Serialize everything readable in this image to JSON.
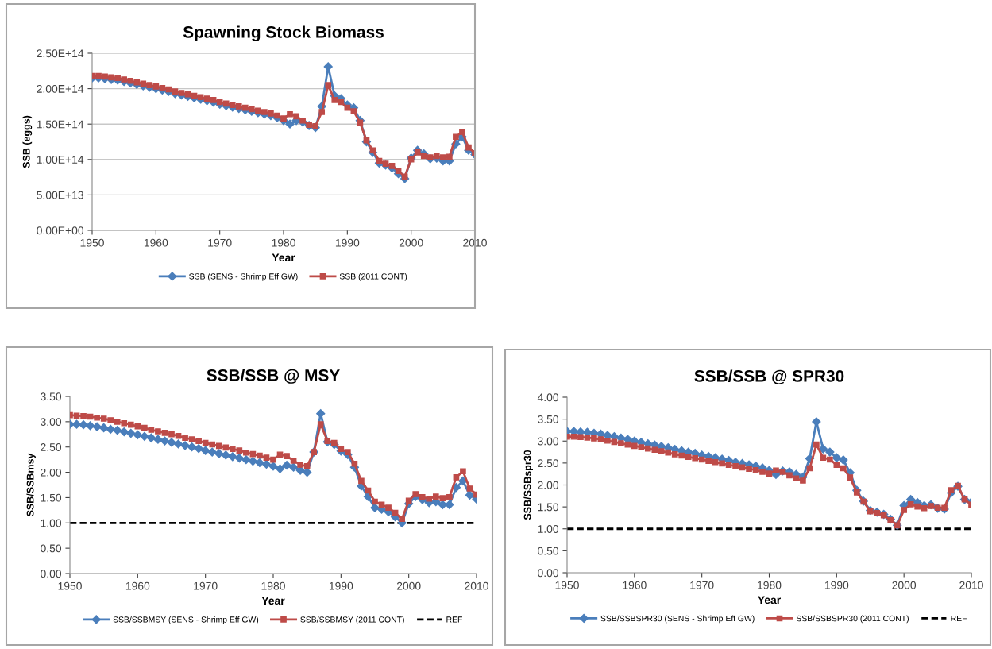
{
  "chart_data": [
    {
      "type": "line",
      "title": "Spawning Stock Biomass",
      "xlabel": "Year",
      "ylabel": "SSB (eggs)",
      "x": [
        1950,
        1951,
        1952,
        1953,
        1954,
        1955,
        1956,
        1957,
        1958,
        1959,
        1960,
        1961,
        1962,
        1963,
        1964,
        1965,
        1966,
        1967,
        1968,
        1969,
        1970,
        1971,
        1972,
        1973,
        1974,
        1975,
        1976,
        1977,
        1978,
        1979,
        1980,
        1981,
        1982,
        1983,
        1984,
        1985,
        1986,
        1987,
        1988,
        1989,
        1990,
        1991,
        1992,
        1993,
        1994,
        1995,
        1996,
        1997,
        1998,
        1999,
        2000,
        2001,
        2002,
        2003,
        2004,
        2005,
        2006,
        2007,
        2008,
        2009,
        2010
      ],
      "series": [
        {
          "name": "SSB (SENS - Shrimp Eff GW)",
          "color": "#4a7ebb",
          "marker": "diamond",
          "values": [
            215000000000000.0,
            215000000000000.0,
            214000000000000.0,
            213000000000000.0,
            212000000000000.0,
            210000000000000.0,
            208000000000000.0,
            206000000000000.0,
            204000000000000.0,
            202000000000000.0,
            200000000000000.0,
            198000000000000.0,
            196000000000000.0,
            193000000000000.0,
            191000000000000.0,
            189000000000000.0,
            187000000000000.0,
            185000000000000.0,
            183000000000000.0,
            181000000000000.0,
            178000000000000.0,
            176000000000000.0,
            174000000000000.0,
            172000000000000.0,
            170000000000000.0,
            168000000000000.0,
            166000000000000.0,
            164000000000000.0,
            162000000000000.0,
            159000000000000.0,
            155000000000000.0,
            150000000000000.0,
            155000000000000.0,
            153000000000000.0,
            148000000000000.0,
            145000000000000.0,
            175000000000000.0,
            231000000000000.0,
            190000000000000.0,
            186000000000000.0,
            177000000000000.0,
            173000000000000.0,
            155000000000000.0,
            125000000000000.0,
            110000000000000.0,
            95000000000000.0,
            92000000000000.0,
            88000000000000.0,
            80000000000000.0,
            73000000000000.0,
            102000000000000.0,
            113000000000000.0,
            108000000000000.0,
            101000000000000.0,
            102000000000000.0,
            98000000000000.0,
            98000000000000.0,
            122000000000000.0,
            132000000000000.0,
            113000000000000.0,
            107000000000000.0
          ]
        },
        {
          "name": "SSB (2011 CONT)",
          "color": "#be4b48",
          "marker": "square",
          "values": [
            218000000000000.0,
            218000000000000.0,
            217000000000000.0,
            216000000000000.0,
            215000000000000.0,
            213000000000000.0,
            211000000000000.0,
            209000000000000.0,
            207000000000000.0,
            205000000000000.0,
            203000000000000.0,
            201000000000000.0,
            199000000000000.0,
            196000000000000.0,
            194000000000000.0,
            192000000000000.0,
            190000000000000.0,
            188000000000000.0,
            186000000000000.0,
            184000000000000.0,
            181000000000000.0,
            179000000000000.0,
            177000000000000.0,
            175000000000000.0,
            173000000000000.0,
            171000000000000.0,
            169000000000000.0,
            167000000000000.0,
            165000000000000.0,
            162000000000000.0,
            158000000000000.0,
            164000000000000.0,
            161000000000000.0,
            155000000000000.0,
            149000000000000.0,
            147000000000000.0,
            167000000000000.0,
            205000000000000.0,
            184000000000000.0,
            181000000000000.0,
            173000000000000.0,
            168000000000000.0,
            152000000000000.0,
            127000000000000.0,
            113000000000000.0,
            98000000000000.0,
            94000000000000.0,
            91000000000000.0,
            84000000000000.0,
            76000000000000.0,
            100000000000000.0,
            110000000000000.0,
            105000000000000.0,
            103000000000000.0,
            105000000000000.0,
            103000000000000.0,
            104000000000000.0,
            132000000000000.0,
            139000000000000.0,
            117000000000000.0,
            109000000000000.0
          ]
        }
      ],
      "xlim": [
        1950,
        2010
      ],
      "xticks": [
        1950,
        1960,
        1970,
        1980,
        1990,
        2000,
        2010
      ],
      "ylim": [
        0,
        250000000000000.0
      ],
      "yticks": [
        {
          "value": 0,
          "label": "0.00E+00"
        },
        {
          "value": 50000000000000.0,
          "label": "5.00E+13"
        },
        {
          "value": 100000000000000.0,
          "label": "1.00E+14"
        },
        {
          "value": 150000000000000.0,
          "label": "1.50E+14"
        },
        {
          "value": 200000000000000.0,
          "label": "2.00E+14"
        },
        {
          "value": 250000000000000.0,
          "label": "2.50E+14"
        }
      ],
      "grid": "y",
      "legend": "bottom",
      "line_style": "solid"
    },
    {
      "type": "line",
      "title": "SSB/SSB @ MSY",
      "xlabel": "Year",
      "ylabel": "SSB/SSBmsy",
      "x": [
        1950,
        1951,
        1952,
        1953,
        1954,
        1955,
        1956,
        1957,
        1958,
        1959,
        1960,
        1961,
        1962,
        1963,
        1964,
        1965,
        1966,
        1967,
        1968,
        1969,
        1970,
        1971,
        1972,
        1973,
        1974,
        1975,
        1976,
        1977,
        1978,
        1979,
        1980,
        1981,
        1982,
        1983,
        1984,
        1985,
        1986,
        1987,
        1988,
        1989,
        1990,
        1991,
        1992,
        1993,
        1994,
        1995,
        1996,
        1997,
        1998,
        1999,
        2000,
        2001,
        2002,
        2003,
        2004,
        2005,
        2006,
        2007,
        2008,
        2009,
        2010
      ],
      "series": [
        {
          "name": "SSB/SSBMSY (SENS - Shrimp Eff GW)",
          "color": "#4a7ebb",
          "marker": "diamond",
          "values": [
            2.95,
            2.95,
            2.94,
            2.92,
            2.9,
            2.88,
            2.85,
            2.83,
            2.8,
            2.77,
            2.74,
            2.71,
            2.68,
            2.65,
            2.62,
            2.59,
            2.56,
            2.53,
            2.5,
            2.47,
            2.43,
            2.4,
            2.37,
            2.34,
            2.31,
            2.28,
            2.25,
            2.22,
            2.19,
            2.16,
            2.12,
            2.07,
            2.14,
            2.1,
            2.04,
            2.0,
            2.4,
            3.16,
            2.6,
            2.55,
            2.42,
            2.35,
            2.1,
            1.73,
            1.52,
            1.3,
            1.27,
            1.22,
            1.12,
            1.0,
            1.38,
            1.52,
            1.46,
            1.4,
            1.42,
            1.36,
            1.36,
            1.7,
            1.83,
            1.55,
            1.47
          ]
        },
        {
          "name": "SSB/SSBMSY (2011 CONT)",
          "color": "#be4b48",
          "marker": "square",
          "values": [
            3.13,
            3.12,
            3.11,
            3.1,
            3.08,
            3.06,
            3.03,
            3.0,
            2.97,
            2.94,
            2.91,
            2.88,
            2.84,
            2.81,
            2.78,
            2.75,
            2.72,
            2.68,
            2.65,
            2.62,
            2.58,
            2.55,
            2.52,
            2.49,
            2.46,
            2.43,
            2.39,
            2.36,
            2.33,
            2.29,
            2.25,
            2.35,
            2.32,
            2.23,
            2.15,
            2.12,
            2.4,
            2.95,
            2.62,
            2.58,
            2.46,
            2.4,
            2.17,
            1.83,
            1.64,
            1.42,
            1.36,
            1.3,
            1.2,
            1.08,
            1.44,
            1.57,
            1.51,
            1.48,
            1.52,
            1.49,
            1.51,
            1.9,
            2.02,
            1.68,
            1.56
          ]
        }
      ],
      "ref_lines": [
        {
          "axis": "y",
          "value": 1.0,
          "label": "REF",
          "color": "#000000",
          "line_style": "dashed"
        }
      ],
      "xlim": [
        1950,
        2010
      ],
      "xticks": [
        1950,
        1960,
        1970,
        1980,
        1990,
        2000,
        2010
      ],
      "ylim": [
        0,
        3.5
      ],
      "yticks": [
        {
          "value": 0,
          "label": "0.00"
        },
        {
          "value": 0.5,
          "label": "0.50"
        },
        {
          "value": 1,
          "label": "1.00"
        },
        {
          "value": 1.5,
          "label": "1.50"
        },
        {
          "value": 2,
          "label": "2.00"
        },
        {
          "value": 2.5,
          "label": "2.50"
        },
        {
          "value": 3,
          "label": "3.00"
        },
        {
          "value": 3.5,
          "label": "3.50"
        }
      ],
      "legend": "bottom",
      "line_style": "solid"
    },
    {
      "type": "line",
      "title": "SSB/SSB @ SPR30",
      "xlabel": "Year",
      "ylabel": "SSB/SSBspr30",
      "x": [
        1950,
        1951,
        1952,
        1953,
        1954,
        1955,
        1956,
        1957,
        1958,
        1959,
        1960,
        1961,
        1962,
        1963,
        1964,
        1965,
        1966,
        1967,
        1968,
        1969,
        1970,
        1971,
        1972,
        1973,
        1974,
        1975,
        1976,
        1977,
        1978,
        1979,
        1980,
        1981,
        1982,
        1983,
        1984,
        1985,
        1986,
        1987,
        1988,
        1989,
        1990,
        1991,
        1992,
        1993,
        1994,
        1995,
        1996,
        1997,
        1998,
        1999,
        2000,
        2001,
        2002,
        2003,
        2004,
        2005,
        2006,
        2007,
        2008,
        2009,
        2010
      ],
      "series": [
        {
          "name": "SSB/SSBSPR30 (SENS - Shrimp Eff GW)",
          "color": "#4a7ebb",
          "marker": "diamond",
          "values": [
            3.22,
            3.22,
            3.21,
            3.2,
            3.18,
            3.16,
            3.13,
            3.1,
            3.07,
            3.04,
            3.0,
            2.97,
            2.94,
            2.91,
            2.88,
            2.85,
            2.81,
            2.78,
            2.75,
            2.72,
            2.68,
            2.65,
            2.62,
            2.59,
            2.56,
            2.52,
            2.49,
            2.46,
            2.43,
            2.39,
            2.33,
            2.24,
            2.32,
            2.3,
            2.24,
            2.18,
            2.6,
            3.44,
            2.82,
            2.75,
            2.62,
            2.57,
            2.28,
            1.88,
            1.63,
            1.42,
            1.38,
            1.33,
            1.22,
            1.08,
            1.53,
            1.67,
            1.6,
            1.53,
            1.55,
            1.47,
            1.45,
            1.82,
            1.97,
            1.67,
            1.61
          ]
        },
        {
          "name": "SSB/SSBSPR30 (2011 CONT)",
          "color": "#be4b48",
          "marker": "square",
          "values": [
            3.1,
            3.1,
            3.09,
            3.08,
            3.06,
            3.04,
            3.01,
            2.98,
            2.95,
            2.92,
            2.89,
            2.86,
            2.83,
            2.8,
            2.77,
            2.74,
            2.7,
            2.67,
            2.64,
            2.61,
            2.58,
            2.55,
            2.52,
            2.49,
            2.46,
            2.43,
            2.4,
            2.37,
            2.34,
            2.3,
            2.26,
            2.33,
            2.3,
            2.22,
            2.15,
            2.1,
            2.38,
            2.92,
            2.62,
            2.58,
            2.46,
            2.38,
            2.17,
            1.83,
            1.62,
            1.4,
            1.36,
            1.31,
            1.2,
            1.08,
            1.43,
            1.56,
            1.51,
            1.47,
            1.52,
            1.48,
            1.48,
            1.88,
            1.98,
            1.67,
            1.55
          ]
        }
      ],
      "ref_lines": [
        {
          "axis": "y",
          "value": 1.0,
          "label": "REF",
          "color": "#000000",
          "line_style": "dashed"
        }
      ],
      "xlim": [
        1950,
        2010
      ],
      "xticks": [
        1950,
        1960,
        1970,
        1980,
        1990,
        2000,
        2010
      ],
      "ylim": [
        0,
        4.0
      ],
      "yticks": [
        {
          "value": 0,
          "label": "0.00"
        },
        {
          "value": 0.5,
          "label": "0.50"
        },
        {
          "value": 1,
          "label": "1.00"
        },
        {
          "value": 1.5,
          "label": "1.50"
        },
        {
          "value": 2,
          "label": "2.00"
        },
        {
          "value": 2.5,
          "label": "2.50"
        },
        {
          "value": 3,
          "label": "3.00"
        },
        {
          "value": 3.5,
          "label": "3.50"
        },
        {
          "value": 4,
          "label": "4.00"
        }
      ],
      "legend": "bottom",
      "line_style": "solid"
    }
  ]
}
